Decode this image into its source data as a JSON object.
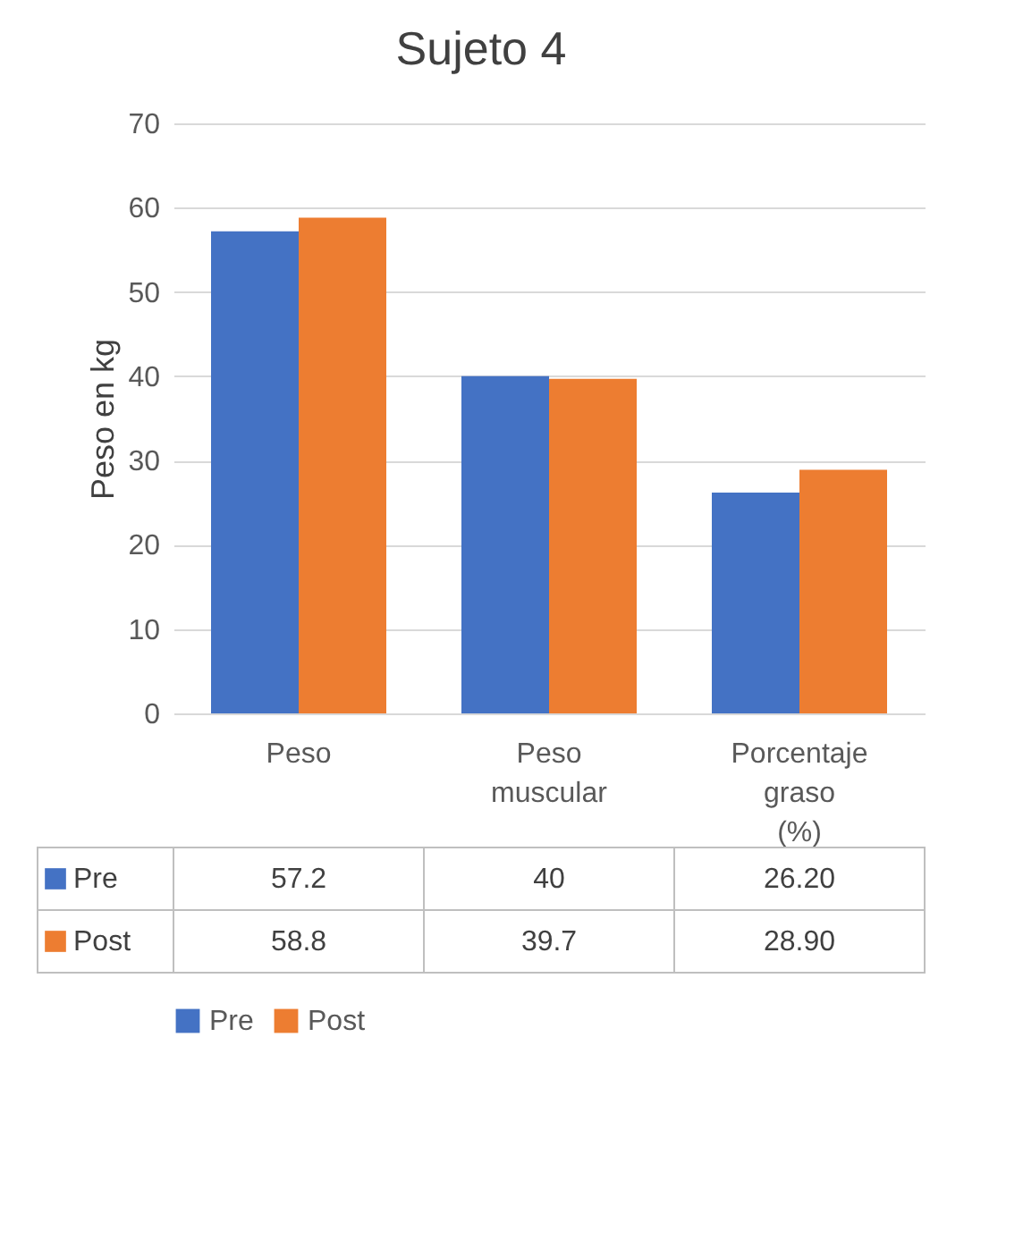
{
  "chart_data": {
    "type": "bar",
    "title": "Sujeto 4",
    "ylabel": "Peso en kg",
    "categories": [
      "Peso",
      "Peso muscular",
      "Porcentaje graso (%)"
    ],
    "series": [
      {
        "name": "Pre",
        "color": "#4472c4",
        "values": [
          57.2,
          40,
          26.2
        ],
        "value_labels": [
          "57.2",
          "40",
          "26.20"
        ]
      },
      {
        "name": "Post",
        "color": "#ed7d31",
        "values": [
          58.8,
          39.7,
          28.9
        ],
        "value_labels": [
          "58.8",
          "39.7",
          "28.90"
        ]
      }
    ],
    "ylim": [
      0,
      70
    ],
    "yticks": [
      0,
      10,
      20,
      30,
      40,
      50,
      60,
      70
    ],
    "grid": "y",
    "legend": "bottom"
  }
}
